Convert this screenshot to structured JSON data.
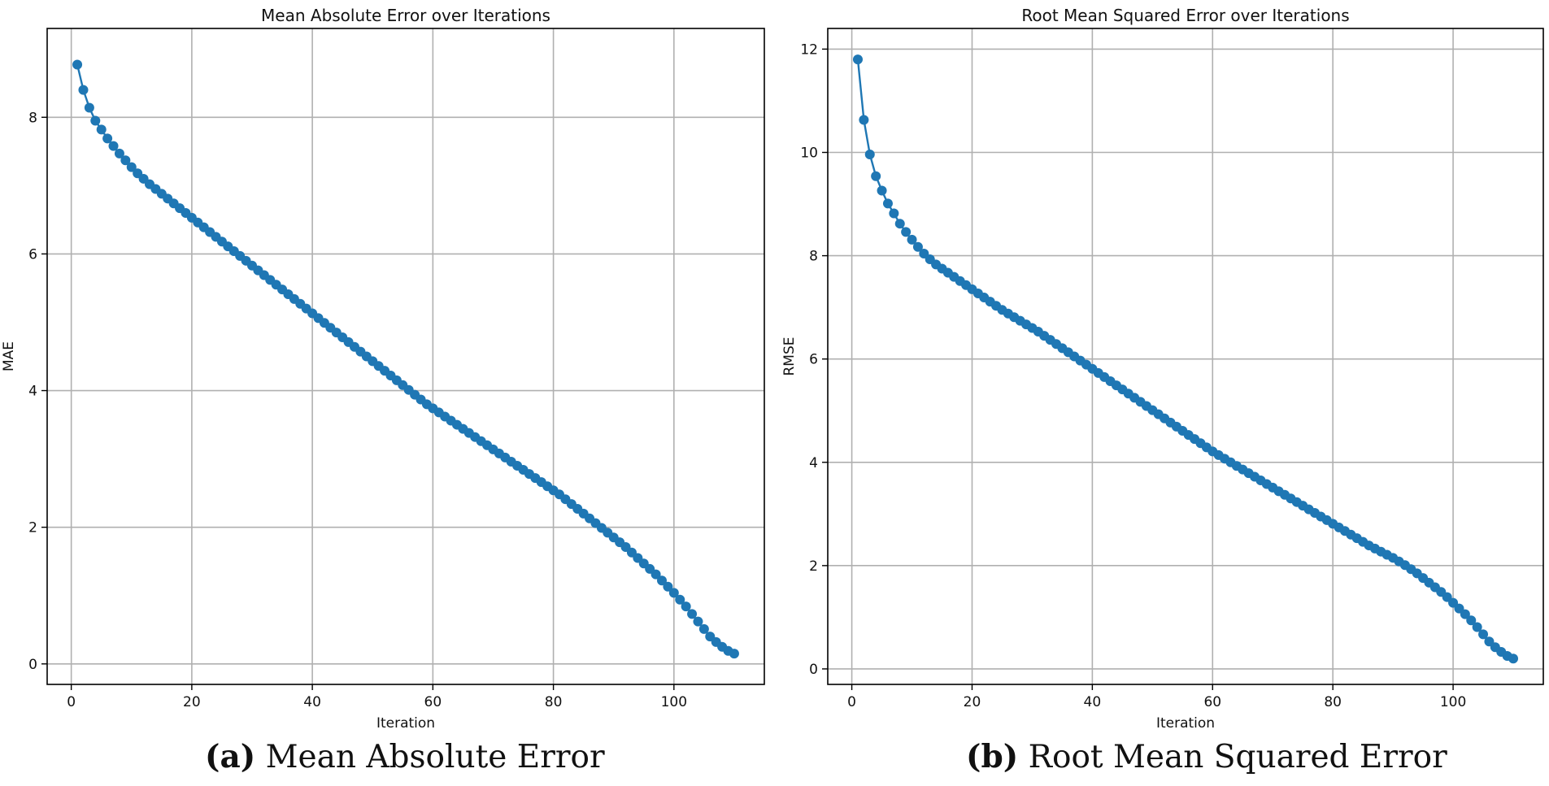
{
  "chart_data": [
    {
      "type": "line",
      "title": "Mean Absolute Error over Iterations",
      "xlabel": "Iteration",
      "ylabel": "MAE",
      "xlim": [
        -4,
        115
      ],
      "ylim": [
        -0.3,
        9.3
      ],
      "xticks": [
        0,
        20,
        40,
        60,
        80,
        100
      ],
      "yticks": [
        0,
        2,
        4,
        6,
        8
      ],
      "grid": true,
      "color": "#1f77b4",
      "series": [
        {
          "name": "MAE",
          "x": [
            1,
            2,
            3,
            4,
            5,
            6,
            7,
            8,
            9,
            10,
            11,
            12,
            13,
            14,
            15,
            16,
            17,
            18,
            19,
            20,
            21,
            22,
            23,
            24,
            25,
            26,
            27,
            28,
            29,
            30,
            31,
            32,
            33,
            34,
            35,
            36,
            37,
            38,
            39,
            40,
            41,
            42,
            43,
            44,
            45,
            46,
            47,
            48,
            49,
            50,
            51,
            52,
            53,
            54,
            55,
            56,
            57,
            58,
            59,
            60,
            61,
            62,
            63,
            64,
            65,
            66,
            67,
            68,
            69,
            70,
            71,
            72,
            73,
            74,
            75,
            76,
            77,
            78,
            79,
            80,
            81,
            82,
            83,
            84,
            85,
            86,
            87,
            88,
            89,
            90,
            91,
            92,
            93,
            94,
            95,
            96,
            97,
            98,
            99,
            100,
            101,
            102,
            103,
            104,
            105,
            106,
            107,
            108,
            109,
            110
          ],
          "values": [
            8.77,
            8.4,
            8.14,
            7.95,
            7.82,
            7.69,
            7.58,
            7.47,
            7.37,
            7.27,
            7.18,
            7.1,
            7.02,
            6.95,
            6.88,
            6.81,
            6.74,
            6.67,
            6.6,
            6.53,
            6.46,
            6.39,
            6.32,
            6.25,
            6.18,
            6.11,
            6.04,
            5.97,
            5.9,
            5.83,
            5.76,
            5.69,
            5.62,
            5.55,
            5.48,
            5.41,
            5.34,
            5.27,
            5.2,
            5.13,
            5.06,
            4.99,
            4.92,
            4.85,
            4.78,
            4.71,
            4.64,
            4.57,
            4.5,
            4.43,
            4.36,
            4.29,
            4.22,
            4.15,
            4.08,
            4.01,
            3.94,
            3.87,
            3.8,
            3.74,
            3.68,
            3.62,
            3.56,
            3.5,
            3.44,
            3.38,
            3.32,
            3.26,
            3.2,
            3.14,
            3.08,
            3.02,
            2.96,
            2.9,
            2.84,
            2.78,
            2.72,
            2.66,
            2.6,
            2.54,
            2.48,
            2.41,
            2.34,
            2.27,
            2.2,
            2.13,
            2.06,
            1.99,
            1.92,
            1.85,
            1.78,
            1.71,
            1.63,
            1.55,
            1.47,
            1.39,
            1.31,
            1.22,
            1.13,
            1.04,
            0.94,
            0.84,
            0.73,
            0.62,
            0.51,
            0.4,
            0.32,
            0.25,
            0.19,
            0.15
          ]
        }
      ]
    },
    {
      "type": "line",
      "title": "Root Mean Squared Error over Iterations",
      "xlabel": "Iteration",
      "ylabel": "RMSE",
      "xlim": [
        -4,
        115
      ],
      "ylim": [
        -0.3,
        12.4
      ],
      "xticks": [
        0,
        20,
        40,
        60,
        80,
        100
      ],
      "yticks": [
        0,
        2,
        4,
        6,
        8,
        10,
        12
      ],
      "grid": true,
      "color": "#1f77b4",
      "series": [
        {
          "name": "RMSE",
          "x": [
            1,
            2,
            3,
            4,
            5,
            6,
            7,
            8,
            9,
            10,
            11,
            12,
            13,
            14,
            15,
            16,
            17,
            18,
            19,
            20,
            21,
            22,
            23,
            24,
            25,
            26,
            27,
            28,
            29,
            30,
            31,
            32,
            33,
            34,
            35,
            36,
            37,
            38,
            39,
            40,
            41,
            42,
            43,
            44,
            45,
            46,
            47,
            48,
            49,
            50,
            51,
            52,
            53,
            54,
            55,
            56,
            57,
            58,
            59,
            60,
            61,
            62,
            63,
            64,
            65,
            66,
            67,
            68,
            69,
            70,
            71,
            72,
            73,
            74,
            75,
            76,
            77,
            78,
            79,
            80,
            81,
            82,
            83,
            84,
            85,
            86,
            87,
            88,
            89,
            90,
            91,
            92,
            93,
            94,
            95,
            96,
            97,
            98,
            99,
            100,
            101,
            102,
            103,
            104,
            105,
            106,
            107,
            108,
            109,
            110
          ],
          "values": [
            11.8,
            10.63,
            9.96,
            9.54,
            9.26,
            9.01,
            8.82,
            8.62,
            8.46,
            8.31,
            8.17,
            8.04,
            7.93,
            7.83,
            7.75,
            7.67,
            7.59,
            7.51,
            7.43,
            7.35,
            7.27,
            7.19,
            7.11,
            7.03,
            6.95,
            6.88,
            6.81,
            6.74,
            6.67,
            6.6,
            6.53,
            6.45,
            6.37,
            6.29,
            6.21,
            6.13,
            6.05,
            5.97,
            5.89,
            5.81,
            5.73,
            5.65,
            5.57,
            5.49,
            5.41,
            5.33,
            5.25,
            5.17,
            5.09,
            5.01,
            4.93,
            4.85,
            4.77,
            4.69,
            4.61,
            4.53,
            4.45,
            4.37,
            4.29,
            4.21,
            4.14,
            4.07,
            4.0,
            3.93,
            3.86,
            3.79,
            3.72,
            3.65,
            3.58,
            3.51,
            3.44,
            3.37,
            3.3,
            3.23,
            3.16,
            3.09,
            3.02,
            2.95,
            2.88,
            2.81,
            2.74,
            2.67,
            2.6,
            2.53,
            2.46,
            2.39,
            2.33,
            2.27,
            2.21,
            2.15,
            2.08,
            2.01,
            1.93,
            1.85,
            1.76,
            1.67,
            1.58,
            1.49,
            1.39,
            1.28,
            1.17,
            1.06,
            0.94,
            0.81,
            0.67,
            0.53,
            0.42,
            0.33,
            0.25,
            0.2
          ]
        }
      ]
    }
  ],
  "captions": {
    "a_tag": "(a)",
    "a_text": "Mean Absolute Error",
    "b_tag": "(b)",
    "b_text": "Root Mean Squared Error"
  }
}
